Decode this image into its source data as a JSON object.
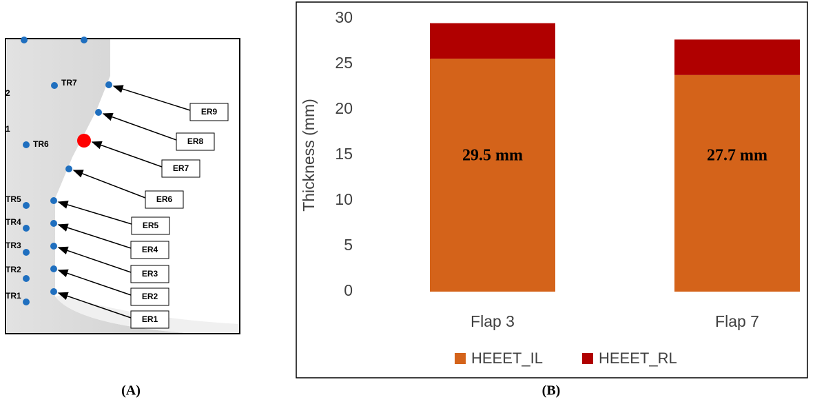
{
  "diagram": {
    "tr_labels": [
      "TR7",
      "TR6",
      "TR5",
      "TR4",
      "TR3",
      "TR2",
      "TR1"
    ],
    "edge_labels": [
      "2",
      "1"
    ],
    "er_labels": [
      "ER9",
      "ER8",
      "ER7",
      "ER6",
      "ER5",
      "ER4",
      "ER3",
      "ER2",
      "ER1"
    ]
  },
  "panel_labels": [
    "(A)",
    "(B)"
  ],
  "chart_data": {
    "type": "bar",
    "stacked": true,
    "y_label": "Thickness (mm)",
    "categories": [
      "Flap 3",
      "Flap 7"
    ],
    "series": [
      {
        "name": "HEEET_IL",
        "color": "#d4631a",
        "values": [
          25.6,
          23.8
        ]
      },
      {
        "name": "HEEET_RL",
        "color": "#b00000",
        "values": [
          3.9,
          3.9
        ]
      }
    ],
    "annotations": [
      "29.5 mm",
      "27.7 mm"
    ],
    "ylim": [
      0,
      30
    ],
    "yticks": [
      0,
      5,
      10,
      15,
      20,
      25,
      30
    ],
    "grid": false,
    "legend": "bottom"
  }
}
